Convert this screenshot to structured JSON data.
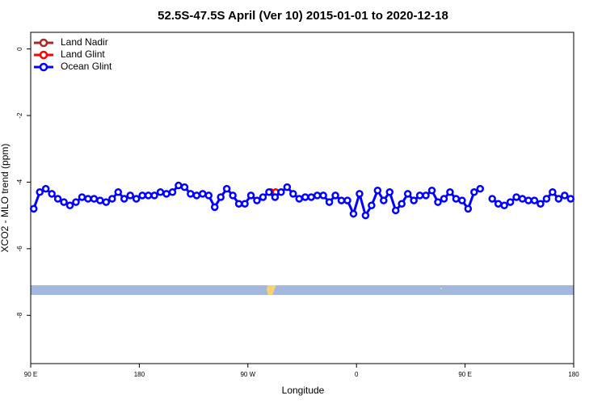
{
  "chart_data": {
    "type": "line",
    "title": "52.5S-47.5S April (Ver 10)   2015-01-01 to 2020-12-18",
    "x_label": "Longitude",
    "y_label": "XCO2 - MLO trend (ppm)",
    "xlim": [
      90,
      540
    ],
    "xticks": [
      {
        "value": 90,
        "label": "90 E"
      },
      {
        "value": 180,
        "label": "180"
      },
      {
        "value": 270,
        "label": "90 W"
      },
      {
        "value": 360,
        "label": "0"
      },
      {
        "value": 450,
        "label": "90 E"
      },
      {
        "value": 540,
        "label": "180"
      }
    ],
    "ylim": [
      -9.45,
      0.5
    ],
    "yticks": [
      0,
      -2,
      -4,
      -6,
      -8
    ],
    "legend_position": "top-left",
    "series": [
      {
        "name": "Land Nadir",
        "color": "#a52a2a",
        "x": [],
        "values": []
      },
      {
        "name": "Land Glint",
        "color": "#ff0000",
        "x": [
          289,
          293
        ],
        "values": [
          -4.3,
          -4.3
        ]
      },
      {
        "name": "Ocean Glint",
        "color": "#0000ff",
        "x": [
          92.5,
          97.5,
          102.5,
          107.5,
          112.5,
          117.5,
          122.5,
          127.5,
          132.5,
          137.5,
          142.5,
          147.5,
          152.5,
          157.5,
          162.5,
          167.5,
          172.5,
          177.5,
          182.5,
          187.5,
          192.5,
          197.5,
          202.5,
          207.5,
          212.5,
          217.5,
          222.5,
          227.5,
          232.5,
          237.5,
          242.5,
          247.5,
          252.5,
          257.5,
          262.5,
          267.5,
          272.5,
          277.5,
          282.5,
          287.5,
          292.5,
          297.5,
          302.5,
          307.5,
          312.5,
          317.5,
          322.5,
          327.5,
          332.5,
          337.5,
          342.5,
          347.5,
          352.5,
          357.5,
          362.5,
          367.5,
          372.5,
          377.5,
          382.5,
          387.5,
          392.5,
          397.5,
          402.5,
          407.5,
          412.5,
          417.5,
          422.5,
          427.5,
          432.5,
          437.5,
          442.5,
          447.5,
          452.5,
          457.5,
          462.5,
          467.5,
          472.5,
          477.5,
          482.5,
          487.5,
          492.5,
          497.5,
          502.5,
          507.5,
          512.5,
          517.5,
          522.5,
          527.5,
          532.5,
          537.5
        ],
        "values": [
          -4.8,
          -4.3,
          -4.2,
          -4.35,
          -4.5,
          -4.6,
          -4.7,
          -4.6,
          -4.45,
          -4.5,
          -4.5,
          -4.55,
          -4.6,
          -4.5,
          -4.3,
          -4.5,
          -4.4,
          -4.5,
          -4.4,
          -4.4,
          -4.4,
          -4.3,
          -4.35,
          -4.3,
          -4.1,
          -4.15,
          -4.35,
          -4.4,
          -4.35,
          -4.4,
          -4.75,
          -4.45,
          -4.2,
          -4.4,
          -4.65,
          -4.65,
          -4.4,
          -4.55,
          -4.45,
          -4.3,
          -4.45,
          -4.3,
          -4.15,
          -4.35,
          -4.5,
          -4.45,
          -4.45,
          -4.4,
          -4.4,
          -4.6,
          -4.4,
          -4.55,
          -4.55,
          -4.95,
          -4.35,
          -5.0,
          -4.7,
          -4.25,
          -4.55,
          -4.3,
          -4.85,
          -4.65,
          -4.35,
          -4.55,
          -4.4,
          -4.4,
          -4.25,
          -4.6,
          -4.5,
          -4.3,
          -4.5,
          -4.55,
          -4.8,
          -4.3,
          -4.2,
          null,
          -4.5,
          -4.65,
          -4.7,
          -4.6,
          -4.45,
          -4.5,
          -4.55,
          -4.55,
          -4.65,
          -4.5,
          -4.3,
          -4.5,
          -4.4,
          -4.5
        ]
      }
    ]
  }
}
